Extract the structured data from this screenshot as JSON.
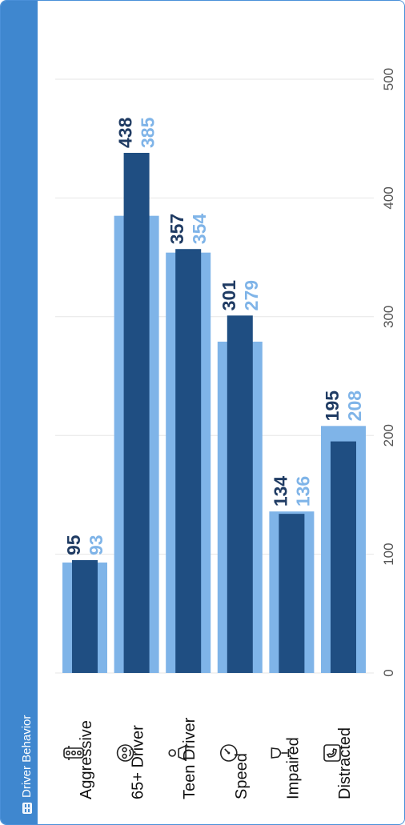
{
  "panel": {
    "title": "Driver Behavior",
    "title_icon": "table-icon"
  },
  "colors": {
    "header": "#3f87cf",
    "series_light": "#7fb4e8",
    "series_dark": "#1f4e82",
    "label_dark": "#1f3b63",
    "label_light": "#7fb4e8",
    "grid": "#e6e6e6",
    "tick_text": "#555555"
  },
  "chart_data": {
    "type": "bar",
    "orientation": "horizontal",
    "categories": [
      "Aggressive",
      "65+ Driver",
      "Teen Driver",
      "Speed",
      "Impaired",
      "Distracted"
    ],
    "category_icons": [
      "traffic-light-icon",
      "elderly-face-icon",
      "teen-driver-icon",
      "speedometer-icon",
      "wine-glass-icon",
      "phone-icon"
    ],
    "series": [
      {
        "values": [
          93,
          385,
          354,
          279,
          136,
          208
        ],
        "color": "#7fb4e8"
      },
      {
        "values": [
          95,
          438,
          357,
          301,
          134,
          195
        ],
        "color": "#1f4e82"
      }
    ],
    "xlim": [
      0,
      500
    ],
    "ticks": [
      0,
      100,
      200,
      300,
      400,
      500
    ],
    "grid": true,
    "legend": "none",
    "title": "Driver Behavior",
    "xlabel": "",
    "ylabel": ""
  }
}
